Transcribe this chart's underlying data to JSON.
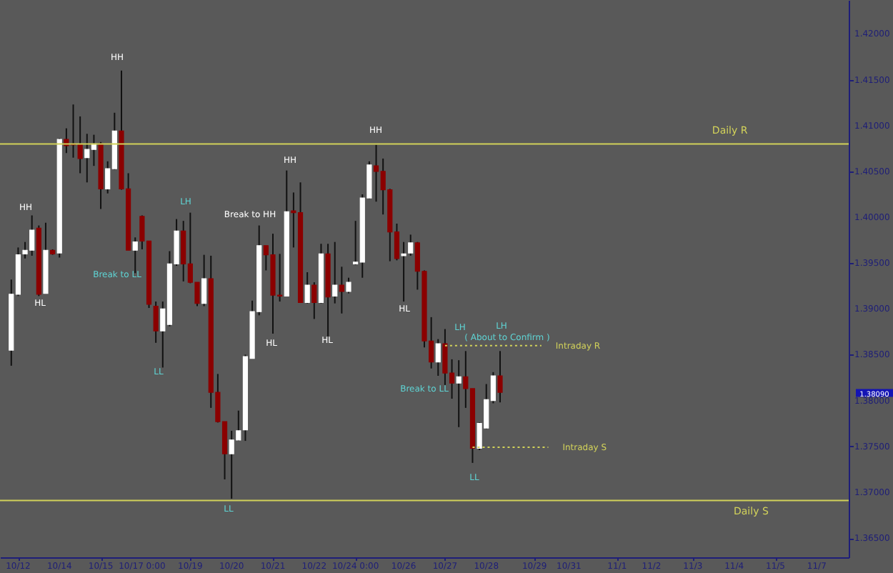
{
  "chart_data": {
    "type": "candlestick",
    "categories": [
      null,
      "10/12",
      null,
      null,
      null,
      null,
      null,
      "10/14",
      null,
      null,
      null,
      null,
      null,
      "10/15",
      null,
      null,
      null,
      null,
      null,
      "10/17 0:00",
      null,
      null,
      null,
      null,
      null,
      null,
      "10/19",
      null,
      null,
      null,
      null,
      null,
      "10/20",
      null,
      null,
      null,
      null,
      null,
      "10/21",
      null,
      null,
      null,
      null,
      null,
      "10/22",
      null,
      null,
      null,
      null,
      null,
      "10/24 0:00",
      null,
      null,
      null,
      null,
      null,
      null,
      "10/26",
      null,
      null,
      null,
      null,
      null,
      "10/27",
      null,
      null,
      null,
      null,
      null,
      "10/28",
      null,
      null,
      null,
      null,
      null,
      null,
      "10/29",
      null,
      null,
      null,
      null,
      "10/31",
      null,
      null,
      null,
      null,
      null,
      null,
      "11/1",
      null,
      null,
      null,
      null,
      "11/2",
      null,
      null,
      null,
      null,
      null,
      "11/3",
      null,
      null,
      null,
      null,
      null,
      "11/4",
      null,
      null,
      null,
      null,
      null,
      "11/5",
      null,
      null,
      null,
      null,
      null,
      "11/7",
      null,
      null,
      null
    ],
    "ohlc": [
      [
        1.3855,
        1.3932,
        1.3838,
        1.3916
      ],
      [
        1.3916,
        1.3967,
        1.3914,
        1.3959
      ],
      [
        1.396,
        1.3973,
        1.3955,
        1.3964
      ],
      [
        1.3964,
        1.4002,
        1.3958,
        1.3986
      ],
      [
        1.3988,
        1.3991,
        1.3914,
        1.3916
      ],
      [
        1.3917,
        1.3994,
        1.3917,
        1.3964
      ],
      [
        1.3964,
        1.3965,
        1.3959,
        1.396
      ],
      [
        1.3961,
        1.4086,
        1.3956,
        1.4085
      ],
      [
        1.4085,
        1.4097,
        1.407,
        1.4078
      ],
      [
        1.408,
        1.4123,
        1.4065,
        1.4079
      ],
      [
        1.4079,
        1.411,
        1.4048,
        1.4064
      ],
      [
        1.4065,
        1.4091,
        1.4038,
        1.4074
      ],
      [
        1.4074,
        1.409,
        1.4056,
        1.408
      ],
      [
        1.408,
        1.4082,
        1.4009,
        1.4031
      ],
      [
        1.4031,
        1.4061,
        1.4026,
        1.4053
      ],
      [
        1.4053,
        1.4114,
        1.4052,
        1.4094
      ],
      [
        1.4094,
        1.416,
        1.403,
        1.4031
      ],
      [
        1.4031,
        1.4048,
        1.3964,
        1.3964
      ],
      [
        1.3964,
        1.3978,
        1.3939,
        1.3973
      ],
      [
        1.4001,
        1.4002,
        1.3965,
        1.3974
      ],
      [
        1.3974,
        1.3974,
        1.3901,
        1.3905
      ],
      [
        1.3903,
        1.3908,
        1.3863,
        1.3876
      ],
      [
        1.3876,
        1.3908,
        1.3836,
        1.39
      ],
      [
        1.3883,
        1.3963,
        1.3881,
        1.3949
      ],
      [
        1.3949,
        1.3998,
        1.3947,
        1.3985
      ],
      [
        1.3985,
        1.3996,
        1.393,
        1.3949
      ],
      [
        1.3949,
        1.4005,
        1.3928,
        1.3929
      ],
      [
        1.3929,
        1.3929,
        1.3903,
        1.3906
      ],
      [
        1.3906,
        1.3959,
        1.3903,
        1.3933
      ],
      [
        1.3933,
        1.3958,
        1.3792,
        1.3809
      ],
      [
        1.3809,
        1.3829,
        1.3776,
        1.3777
      ],
      [
        1.3777,
        1.3777,
        1.3714,
        1.3742
      ],
      [
        1.3742,
        1.3767,
        1.3693,
        1.3757
      ],
      [
        1.3757,
        1.3789,
        1.3756,
        1.3767
      ],
      [
        1.3768,
        1.385,
        1.3756,
        1.3848
      ],
      [
        1.3846,
        1.3909,
        1.3846,
        1.3897
      ],
      [
        1.3897,
        1.3991,
        1.3893,
        1.3969
      ],
      [
        1.3969,
        1.3969,
        1.3942,
        1.3959
      ],
      [
        1.3959,
        1.3982,
        1.3873,
        1.3915
      ],
      [
        1.3915,
        1.396,
        1.3908,
        1.3914
      ],
      [
        1.3914,
        1.4051,
        1.3914,
        1.4006
      ],
      [
        1.4007,
        1.4027,
        1.3967,
        1.4005
      ],
      [
        1.4005,
        1.4038,
        1.3907,
        1.3907
      ],
      [
        1.3907,
        1.394,
        1.3906,
        1.3926
      ],
      [
        1.3926,
        1.3929,
        1.3889,
        1.3907
      ],
      [
        1.3907,
        1.3971,
        1.3906,
        1.396
      ],
      [
        1.396,
        1.3971,
        1.387,
        1.3913
      ],
      [
        1.3914,
        1.3973,
        1.3906,
        1.3926
      ],
      [
        1.3926,
        1.3946,
        1.3895,
        1.3919
      ],
      [
        1.3919,
        1.3934,
        1.3917,
        1.3929
      ],
      [
        1.3949,
        1.3996,
        1.3948,
        1.3951
      ],
      [
        1.3951,
        1.4025,
        1.3934,
        1.4021
      ],
      [
        1.4021,
        1.4061,
        1.402,
        1.4057
      ],
      [
        1.4056,
        1.4079,
        1.4017,
        1.405
      ],
      [
        1.405,
        1.4064,
        1.4003,
        1.403
      ],
      [
        1.403,
        1.4031,
        1.3952,
        1.3984
      ],
      [
        1.3984,
        1.3993,
        1.3953,
        1.3955
      ],
      [
        1.3958,
        1.3973,
        1.3908,
        1.396
      ],
      [
        1.3961,
        1.3981,
        1.3958,
        1.3972
      ],
      [
        1.3972,
        1.3973,
        1.3921,
        1.3941
      ],
      [
        1.3941,
        1.3942,
        1.3858,
        1.3865
      ],
      [
        1.3865,
        1.3891,
        1.3835,
        1.3842
      ],
      [
        1.3842,
        1.3867,
        1.3827,
        1.3862
      ],
      [
        1.3862,
        1.3878,
        1.3817,
        1.383
      ],
      [
        1.383,
        1.3845,
        1.3802,
        1.3819
      ],
      [
        1.3819,
        1.3844,
        1.3771,
        1.3826
      ],
      [
        1.3826,
        1.3854,
        1.3792,
        1.3813
      ],
      [
        1.3813,
        1.3813,
        1.3732,
        1.3748
      ],
      [
        1.3748,
        1.3776,
        1.3746,
        1.3775
      ],
      [
        1.377,
        1.3818,
        1.3769,
        1.3801
      ],
      [
        1.38,
        1.3831,
        1.3797,
        1.3827
      ],
      [
        1.3827,
        1.3854,
        1.3798,
        1.3809
      ],
      null,
      null,
      null,
      null,
      null,
      null,
      null,
      null,
      null,
      null,
      null,
      null,
      null,
      null,
      null,
      null,
      null,
      null,
      null,
      null,
      null,
      null,
      null,
      null,
      null,
      null,
      null,
      null,
      null,
      null,
      null,
      null,
      null,
      null,
      null,
      null,
      null,
      null,
      null,
      null,
      null,
      null,
      null,
      null,
      null,
      null,
      null,
      null,
      null
    ],
    "colors": [
      "#ffffff",
      "#ffffff",
      "#ffffff",
      "#ffffff",
      "#8b0000",
      "#ffffff",
      "#8b0000",
      "#ffffff",
      "#8b0000",
      "#8b0000",
      "#8b0000",
      "#ffffff",
      "#ffffff",
      "#8b0000",
      "#ffffff",
      "#ffffff",
      "#8b0000",
      "#8b0000",
      "#ffffff",
      "#8b0000",
      "#8b0000",
      "#8b0000",
      "#ffffff",
      "#ffffff",
      "#ffffff",
      "#8b0000",
      "#8b0000",
      "#8b0000",
      "#ffffff",
      "#8b0000",
      "#8b0000",
      "#8b0000",
      "#ffffff",
      "#ffffff",
      "#ffffff",
      "#ffffff",
      "#ffffff",
      "#8b0000",
      "#8b0000",
      "#8b0000",
      "#ffffff",
      "#8b0000",
      "#8b0000",
      "#ffffff",
      "#8b0000",
      "#ffffff",
      "#8b0000",
      "#ffffff",
      "#8b0000",
      "#ffffff",
      "#ffffff",
      "#ffffff",
      "#ffffff",
      "#8b0000",
      "#8b0000",
      "#8b0000",
      "#8b0000",
      "#ffffff",
      "#ffffff",
      "#8b0000",
      "#8b0000",
      "#8b0000",
      "#ffffff",
      "#8b0000",
      "#8b0000",
      "#ffffff",
      "#8b0000",
      "#8b0000",
      "#ffffff",
      "#ffffff",
      "#ffffff",
      "#8b0000",
      null,
      null,
      null,
      null,
      null,
      null,
      null,
      null,
      null,
      null,
      null,
      null,
      null,
      null,
      null,
      null,
      null,
      null,
      null,
      null,
      null,
      null,
      null,
      null,
      null,
      null,
      null,
      null,
      null,
      null,
      null,
      null,
      null,
      null,
      null,
      null,
      null,
      null,
      null,
      null,
      null,
      null,
      null,
      null,
      null,
      null,
      null,
      null,
      null
    ],
    "ylim": [
      1.3629,
      1.4237
    ],
    "yticks": [
      {
        "value": 1.365,
        "label": "1.36500"
      },
      {
        "value": 1.37,
        "label": "1.37000"
      },
      {
        "value": 1.375,
        "label": "1.37500"
      },
      {
        "value": 1.38,
        "label": "1.38000"
      },
      {
        "value": 1.385,
        "label": "1.38500"
      },
      {
        "value": 1.39,
        "label": "1.39000"
      },
      {
        "value": 1.395,
        "label": "1.39500"
      },
      {
        "value": 1.4,
        "label": "1.40000"
      },
      {
        "value": 1.405,
        "label": "1.40500"
      },
      {
        "value": 1.41,
        "label": "1.41000"
      },
      {
        "value": 1.415,
        "label": "1.41500"
      },
      {
        "value": 1.42,
        "label": "1.42000"
      }
    ],
    "ref_lines": [
      {
        "axis": "y",
        "value": 1.408,
        "label": "Daily R",
        "color": "#d2d25a",
        "line_style": "solid"
      },
      {
        "axis": "y",
        "value": 1.3691,
        "label": "Daily S",
        "color": "#d2d25a",
        "line_style": "solid"
      }
    ],
    "series": [
      {
        "name": "Intraday R",
        "type": "line",
        "color": "#d2d25a",
        "line_style": "dotted",
        "values": [
          null,
          null,
          null,
          null,
          null,
          null,
          null,
          null,
          null,
          null,
          null,
          null,
          null,
          null,
          null,
          null,
          null,
          null,
          null,
          null,
          null,
          null,
          null,
          null,
          null,
          null,
          null,
          null,
          null,
          null,
          null,
          null,
          null,
          null,
          null,
          null,
          null,
          null,
          null,
          null,
          null,
          null,
          null,
          null,
          null,
          null,
          null,
          null,
          null,
          null,
          null,
          null,
          null,
          null,
          null,
          null,
          null,
          null,
          null,
          null,
          null,
          null,
          null,
          1.386,
          1.386,
          1.386,
          1.386,
          1.386,
          1.386,
          1.386,
          1.386,
          1.386,
          1.386,
          1.386,
          1.386,
          1.386,
          1.386,
          1.386,
          null,
          null,
          null,
          null,
          null,
          null,
          null,
          null,
          null,
          null,
          null,
          null,
          null,
          null,
          null,
          null,
          null,
          null,
          null,
          null,
          null,
          null,
          null,
          null,
          null,
          null,
          null,
          null,
          null,
          null,
          null,
          null,
          null,
          null,
          null,
          null,
          null,
          null,
          null,
          null,
          null,
          null,
          null
        ]
      },
      {
        "name": "Intraday S",
        "type": "line",
        "color": "#d2d25a",
        "line_style": "dotted",
        "values": [
          null,
          null,
          null,
          null,
          null,
          null,
          null,
          null,
          null,
          null,
          null,
          null,
          null,
          null,
          null,
          null,
          null,
          null,
          null,
          null,
          null,
          null,
          null,
          null,
          null,
          null,
          null,
          null,
          null,
          null,
          null,
          null,
          null,
          null,
          null,
          null,
          null,
          null,
          null,
          null,
          null,
          null,
          null,
          null,
          null,
          null,
          null,
          null,
          null,
          null,
          null,
          null,
          null,
          null,
          null,
          null,
          null,
          null,
          null,
          null,
          null,
          null,
          null,
          null,
          null,
          null,
          null,
          1.3749,
          1.3749,
          1.3749,
          1.3749,
          1.3749,
          1.3749,
          1.3749,
          1.3749,
          1.3749,
          1.3749,
          1.3749,
          1.3749,
          null,
          null,
          null,
          null,
          null,
          null,
          null,
          null,
          null,
          null,
          null,
          null,
          null,
          null,
          null,
          null,
          null,
          null,
          null,
          null,
          null,
          null,
          null,
          null,
          null,
          null,
          null,
          null,
          null,
          null,
          null,
          null,
          null,
          null,
          null,
          null,
          null,
          null,
          null,
          null,
          null,
          null
        ]
      }
    ],
    "annotations": [
      "HH",
      "HL",
      "Break to LL",
      "HH",
      "LH",
      "LL",
      "Break to HH",
      "HH",
      "HL",
      "HL",
      "HH",
      "HL",
      "LL",
      "LH",
      "LH",
      "( About to Confirm )",
      "Break to LL",
      "LL",
      "1.38090"
    ],
    "grid": false
  }
}
